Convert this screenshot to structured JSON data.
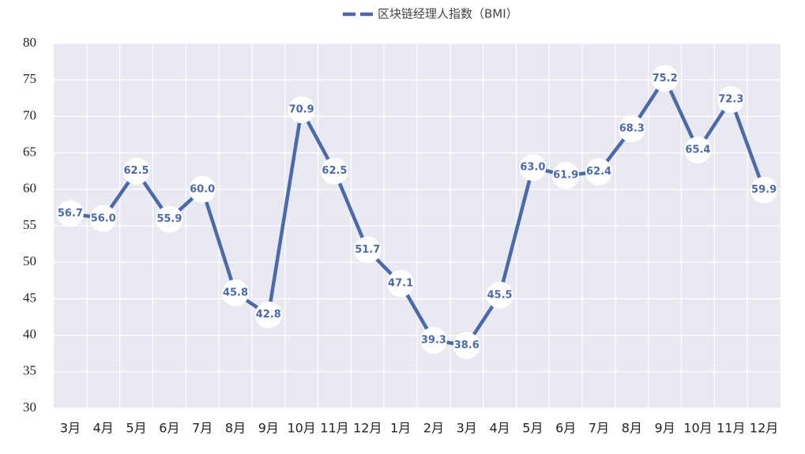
{
  "chart_data": {
    "type": "line",
    "categories": [
      "3月",
      "4月",
      "5月",
      "6月",
      "7月",
      "8月",
      "9月",
      "10月",
      "11月",
      "12月",
      "1月",
      "2月",
      "3月",
      "4月",
      "5月",
      "6月",
      "7月",
      "8月",
      "9月",
      "10月",
      "11月",
      "12月"
    ],
    "series": [
      {
        "name": "区块链经理人指数（BMI）",
        "color": "#4a6aab",
        "values": [
          56.7,
          56.0,
          62.5,
          55.9,
          60.0,
          45.8,
          42.8,
          70.9,
          62.5,
          51.7,
          47.1,
          39.3,
          38.6,
          45.5,
          63.0,
          61.9,
          62.4,
          68.3,
          75.2,
          65.4,
          72.3,
          59.9
        ],
        "value_labels": [
          "56.7",
          "56.0",
          "62.5",
          "55.9",
          "60.0",
          "45.8",
          "42.8",
          "70.9",
          "62.5",
          "51.7",
          "47.1",
          "39.3",
          "38.6",
          "45.5",
          "63.0",
          "61.9",
          "62.4",
          "68.3",
          "75.2",
          "65.4",
          "72.3",
          "59.9"
        ]
      }
    ],
    "ylim": [
      30,
      80
    ],
    "yticks": [
      30,
      35,
      40,
      45,
      50,
      55,
      60,
      65,
      70,
      75,
      80
    ],
    "grid": true,
    "legend": "top"
  }
}
